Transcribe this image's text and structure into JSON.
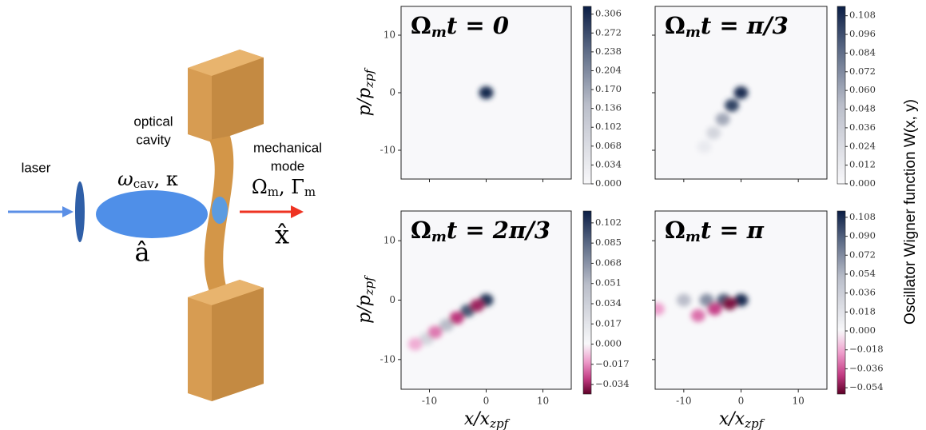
{
  "diagram": {
    "laser": "laser",
    "cavity_line1": "optical",
    "cavity_line2": "cavity",
    "cavity_freq": "ω",
    "cavity_freq_sub": "cav",
    "cavity_decay": ", κ",
    "cavity_operator": "â",
    "mode_line1": "mechanical",
    "mode_line2": "mode",
    "mode_freq": "Ω",
    "mode_freq_sub": "m",
    "mode_damp": ", Γ",
    "mode_damp_sub": "m",
    "mode_operator": "x̂"
  },
  "figure": {
    "colorbar_label": "Oscillator Wigner function W(x, y)",
    "xlabel": {
      "main": "x/x",
      "sub": "zpf"
    },
    "ylabel": {
      "main": "p/p",
      "sub": "zpf"
    },
    "panels": [
      {
        "title": {
          "symbol": "Ω",
          "sub": "m",
          "rest": "t = 0"
        },
        "xlim": [
          -15,
          15
        ],
        "ylim": [
          -15,
          15
        ],
        "xticks": [
          -10,
          0,
          10
        ],
        "yticks": [
          -10,
          0,
          10
        ],
        "clim": [
          0,
          0.32
        ],
        "cticks": [
          {
            "value": 0,
            "label": "0.000"
          },
          0.034,
          0.068,
          0.102,
          0.136,
          {
            "value": 0.17,
            "label": "0.170"
          },
          0.204,
          0.238,
          0.272,
          0.306
        ],
        "blobs": [
          {
            "x": 0,
            "y": 0,
            "value": 0.306
          }
        ]
      },
      {
        "title": {
          "symbol": "Ω",
          "sub": "m",
          "rest": "t = π/3"
        },
        "xlim": [
          -15,
          15
        ],
        "ylim": [
          -15,
          15
        ],
        "xticks": [
          -10,
          0,
          10
        ],
        "yticks": [
          -10,
          0,
          10
        ],
        "clim": [
          0,
          0.114
        ],
        "cticks": [
          {
            "value": 0,
            "label": "0.000"
          },
          0.012,
          0.024,
          0.036,
          0.048,
          {
            "value": 0.06,
            "label": "0.060"
          },
          0.072,
          0.084,
          0.096,
          0.108
        ],
        "blobs": [
          {
            "x": 0,
            "y": 0,
            "value": 0.108
          },
          {
            "x": -1.6,
            "y": -2.2,
            "value": 0.1
          },
          {
            "x": -3.2,
            "y": -4.6,
            "value": 0.06
          },
          {
            "x": -4.8,
            "y": -7,
            "value": 0.03
          },
          {
            "x": -6.4,
            "y": -9.4,
            "value": 0.012
          }
        ]
      },
      {
        "title": {
          "symbol": "Ω",
          "sub": "m",
          "rest": "t = 2π/3"
        },
        "xlim": [
          -15,
          15
        ],
        "ylim": [
          -15,
          15
        ],
        "xticks": [
          -10,
          0,
          10
        ],
        "yticks": [
          -10,
          0,
          10
        ],
        "clim": [
          -0.042,
          0.112
        ],
        "cticks": [
          {
            "value": -0.034,
            "label": "−0.034"
          },
          {
            "value": -0.017,
            "label": "−0.017"
          },
          {
            "value": 0,
            "label": "0.000"
          },
          0.017,
          0.034,
          0.051,
          0.068,
          0.085,
          0.102
        ],
        "blobs": [
          {
            "x": 0,
            "y": 0,
            "value": 0.102
          },
          {
            "x": -3.3,
            "y": -1.8,
            "value": 0.09
          },
          {
            "x": -7,
            "y": -4.2,
            "value": 0.05
          },
          {
            "x": -10.5,
            "y": -6.5,
            "value": 0.03
          },
          {
            "x": -1.6,
            "y": -0.9,
            "value": -0.034
          },
          {
            "x": -5.2,
            "y": -3,
            "value": -0.03
          },
          {
            "x": -9,
            "y": -5.4,
            "value": -0.02
          },
          {
            "x": -12.5,
            "y": -7.4,
            "value": -0.012
          }
        ]
      },
      {
        "title": {
          "symbol": "Ω",
          "sub": "m",
          "rest": "t = π"
        },
        "xlim": [
          -15,
          15
        ],
        "ylim": [
          -15,
          15
        ],
        "xticks": [
          -10,
          0,
          10
        ],
        "yticks": [
          -10,
          0,
          10
        ],
        "clim": [
          -0.06,
          0.114
        ],
        "cticks": [
          {
            "value": -0.054,
            "label": "−0.054"
          },
          {
            "value": -0.036,
            "label": "−0.036"
          },
          {
            "value": -0.018,
            "label": "−0.018"
          },
          {
            "value": 0,
            "label": "0.000"
          },
          0.018,
          0.036,
          0.054,
          0.072,
          {
            "value": 0.09,
            "label": "0.090"
          },
          0.108
        ],
        "blobs": [
          {
            "x": 0,
            "y": 0,
            "value": 0.108
          },
          {
            "x": -3,
            "y": 0,
            "value": 0.09
          },
          {
            "x": -6,
            "y": 0,
            "value": 0.07
          },
          {
            "x": -10,
            "y": 0,
            "value": 0.05
          },
          {
            "x": -2,
            "y": -0.6,
            "value": -0.054
          },
          {
            "x": -4.6,
            "y": -1.5,
            "value": -0.04
          },
          {
            "x": -7.5,
            "y": -2.6,
            "value": -0.03
          },
          {
            "x": -14.6,
            "y": -1.5,
            "value": -0.02
          }
        ]
      }
    ]
  }
}
